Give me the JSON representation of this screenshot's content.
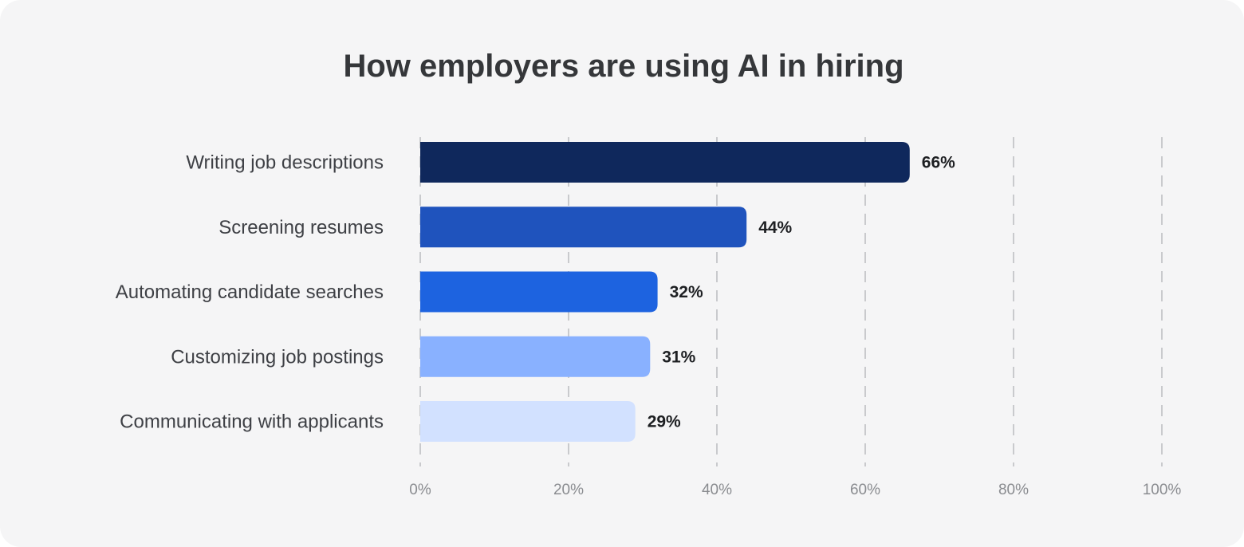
{
  "chart_data": {
    "type": "bar",
    "orientation": "horizontal",
    "title": "How employers are using AI in hiring",
    "categories": [
      "Writing job descriptions",
      "Screening resumes",
      "Automating candidate searches",
      "Customizing job postings",
      "Communicating with applicants"
    ],
    "values": [
      66,
      44,
      32,
      31,
      29
    ],
    "value_labels": [
      "66%",
      "44%",
      "32%",
      "31%",
      "29%"
    ],
    "colors": [
      "#0f285c",
      "#1f53bd",
      "#1d63e0",
      "#89b1ff",
      "#d2e1ff"
    ],
    "xlim": [
      0,
      100
    ],
    "xticks": [
      0,
      20,
      40,
      60,
      80,
      100
    ],
    "xtick_labels": [
      "0%",
      "20%",
      "40%",
      "60%",
      "80%",
      "100%"
    ],
    "xlabel": "",
    "ylabel": "",
    "grid": true,
    "legend": "none"
  }
}
